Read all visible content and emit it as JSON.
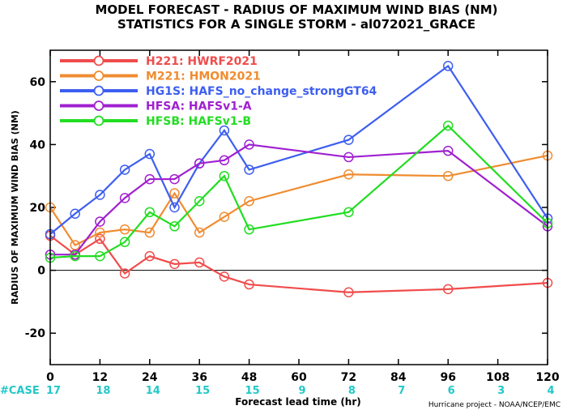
{
  "chart_data": {
    "type": "line",
    "title": "MODEL FORECAST - RADIUS OF MAXIMUM WIND BIAS (NM)",
    "subtitle": "STATISTICS FOR A SINGLE STORM - al072021_GRACE",
    "xlabel": "Forecast lead time (hr)",
    "ylabel": "RADIUS OF MAXIMUM WIND BIAS (NM)",
    "xlim": [
      0,
      120
    ],
    "ylim": [
      -30,
      70
    ],
    "x_ticks": [
      0,
      12,
      24,
      36,
      48,
      60,
      72,
      84,
      96,
      108,
      120
    ],
    "y_ticks": [
      -20,
      0,
      20,
      40,
      60
    ],
    "zero_line": true,
    "legend_position": "top-left",
    "series": [
      {
        "name": "H221: HWRF2021",
        "color": "#f04c4c",
        "x": [
          0,
          6,
          12,
          18,
          24,
          30,
          36,
          42,
          48,
          72,
          96,
          120
        ],
        "y": [
          11,
          5,
          10,
          -1,
          4.5,
          2,
          2.5,
          -2,
          -4.5,
          -7,
          -6,
          -4
        ]
      },
      {
        "name": "M221: HMON2021",
        "color": "#f08c30",
        "x": [
          0,
          6,
          12,
          18,
          24,
          30,
          36,
          42,
          48,
          72,
          96,
          120
        ],
        "y": [
          20,
          8,
          12,
          13,
          12,
          24.5,
          12,
          17,
          22,
          30.5,
          30,
          36.5
        ]
      },
      {
        "name": "HG1S: HAFS_no_change_strongGT64",
        "color": "#3d5ef0",
        "x": [
          0,
          6,
          12,
          18,
          24,
          30,
          36,
          42,
          48,
          72,
          96,
          120
        ],
        "y": [
          11.5,
          18,
          24,
          32,
          37,
          20,
          34,
          44.5,
          32,
          41.5,
          65,
          16.5
        ]
      },
      {
        "name": "HFSA: HAFSv1-A",
        "color": "#a020d0",
        "x": [
          0,
          6,
          12,
          18,
          24,
          30,
          36,
          42,
          48,
          72,
          96,
          120
        ],
        "y": [
          5,
          5,
          15.5,
          23,
          29,
          29,
          34,
          35,
          40,
          36,
          38,
          14
        ]
      },
      {
        "name": "HFSB: HAFSv1-B",
        "color": "#22dd22",
        "x": [
          0,
          6,
          12,
          18,
          24,
          30,
          36,
          42,
          48,
          72,
          96,
          120
        ],
        "y": [
          4,
          4.5,
          4.5,
          9,
          18.5,
          14,
          22,
          30,
          13,
          18.5,
          46,
          15
        ]
      }
    ]
  },
  "cases": {
    "label": "#CASE",
    "label_color": "#22c8c8",
    "x": [
      0,
      12,
      24,
      36,
      48,
      60,
      72,
      84,
      96,
      108,
      120
    ],
    "counts": [
      "17",
      "18",
      "14",
      "15",
      "15",
      "9",
      "8",
      "7",
      "6",
      "3",
      "4"
    ]
  },
  "credit": "Hurricane project - NOAA/NCEP/EMC"
}
